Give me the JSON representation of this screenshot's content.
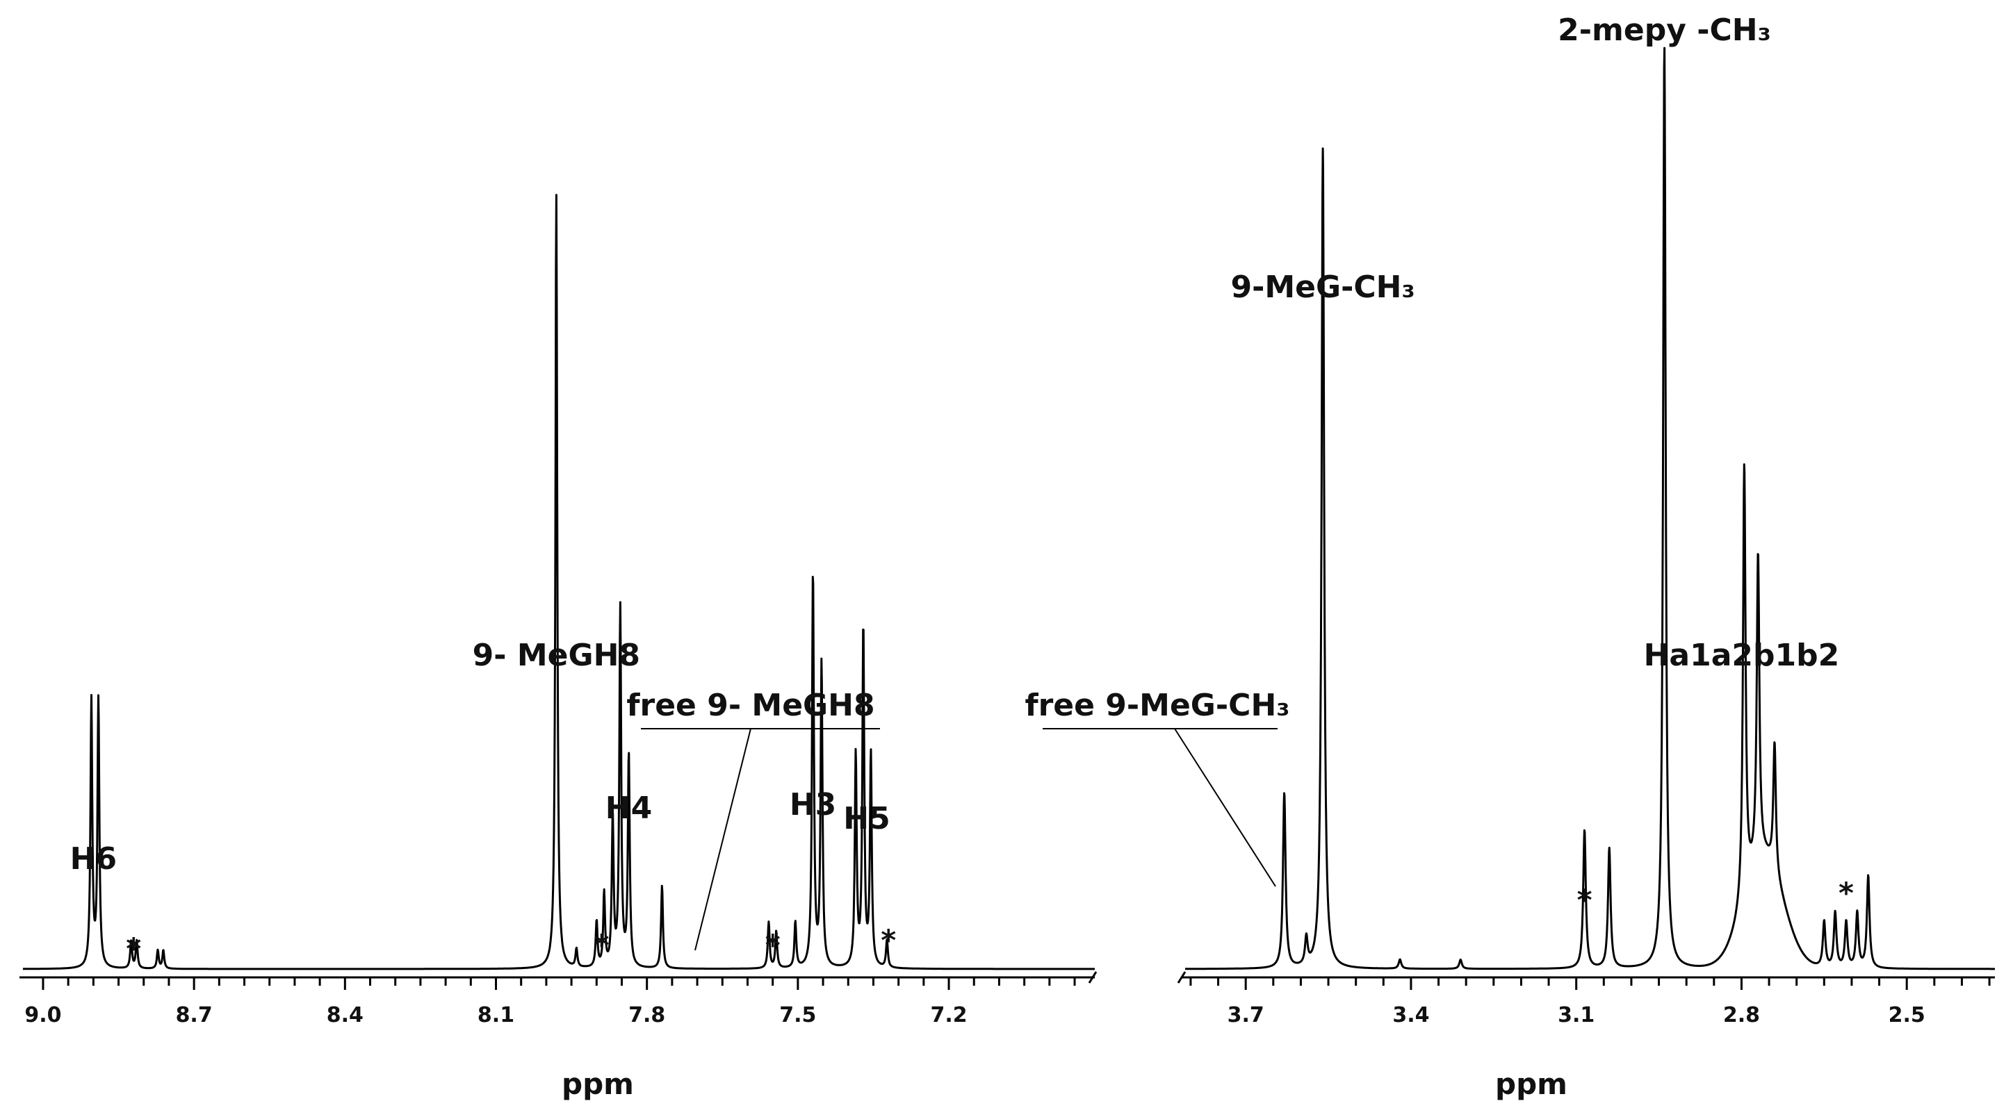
{
  "chart_data": [
    {
      "type": "line",
      "panel": "aromatic region",
      "xlabel": "ppm",
      "xlim": [
        9.04,
        6.91
      ],
      "x_reversed": true,
      "ticks": [
        "9.0",
        "8.7",
        "8.4",
        "8.1",
        "7.8",
        "7.5",
        "7.2"
      ],
      "tick_values": [
        9.0,
        8.7,
        8.4,
        8.1,
        7.8,
        7.5,
        7.2
      ],
      "ylim": [
        0,
        1.0
      ],
      "peaks": [
        {
          "ppm": 8.904,
          "height": 0.29
        },
        {
          "ppm": 8.89,
          "height": 0.29
        },
        {
          "ppm": 8.825,
          "height": 0.03
        },
        {
          "ppm": 8.814,
          "height": 0.03
        },
        {
          "ppm": 8.772,
          "height": 0.02
        },
        {
          "ppm": 8.761,
          "height": 0.02
        },
        {
          "ppm": 7.98,
          "height": 0.84
        },
        {
          "ppm": 7.94,
          "height": 0.02
        },
        {
          "ppm": 7.9,
          "height": 0.05
        },
        {
          "ppm": 7.885,
          "height": 0.08
        },
        {
          "ppm": 7.868,
          "height": 0.16
        },
        {
          "ppm": 7.853,
          "height": 0.39
        },
        {
          "ppm": 7.836,
          "height": 0.23
        },
        {
          "ppm": 7.77,
          "height": 0.09
        },
        {
          "ppm": 7.558,
          "height": 0.05
        },
        {
          "ppm": 7.543,
          "height": 0.04
        },
        {
          "ppm": 7.505,
          "height": 0.05
        },
        {
          "ppm": 7.47,
          "height": 0.43
        },
        {
          "ppm": 7.453,
          "height": 0.33
        },
        {
          "ppm": 7.385,
          "height": 0.23
        },
        {
          "ppm": 7.37,
          "height": 0.37
        },
        {
          "ppm": 7.355,
          "height": 0.23
        },
        {
          "ppm": 7.323,
          "height": 0.03
        }
      ],
      "labels": [
        {
          "text": "H6",
          "ppm": 8.9
        },
        {
          "text": "*",
          "ppm": 8.82
        },
        {
          "text": "9- MeGH8",
          "ppm": 7.98
        },
        {
          "text": "free 9- MeGH8",
          "ppm": 7.77,
          "underlined": true
        },
        {
          "text": "*",
          "ppm": 7.89
        },
        {
          "text": "H4",
          "ppm": 7.85
        },
        {
          "text": "*",
          "ppm": 7.55
        },
        {
          "text": "H3",
          "ppm": 7.47
        },
        {
          "text": "H5",
          "ppm": 7.37
        },
        {
          "text": "*",
          "ppm": 7.32
        }
      ]
    },
    {
      "type": "line",
      "panel": "aliphatic region",
      "xlabel": "ppm",
      "xlim": [
        3.81,
        2.34
      ],
      "x_reversed": true,
      "ticks": [
        "3.7",
        "3.4",
        "3.1",
        "2.8",
        "2.5"
      ],
      "tick_values": [
        3.7,
        3.4,
        3.1,
        2.8,
        2.5
      ],
      "ylim": [
        0,
        1.0
      ],
      "peaks": [
        {
          "ppm": 3.63,
          "height": 0.19
        },
        {
          "ppm": 3.59,
          "height": 0.03
        },
        {
          "ppm": 3.56,
          "height": 0.89
        },
        {
          "ppm": 3.42,
          "height": 0.01
        },
        {
          "ppm": 3.31,
          "height": 0.01
        },
        {
          "ppm": 3.085,
          "height": 0.15
        },
        {
          "ppm": 3.04,
          "height": 0.13
        },
        {
          "ppm": 2.94,
          "height": 1.0
        },
        {
          "ppm": 2.795,
          "height": 0.47
        },
        {
          "ppm": 2.77,
          "height": 0.33
        },
        {
          "ppm": 2.74,
          "height": 0.14
        },
        {
          "ppm": 2.65,
          "height": 0.05
        },
        {
          "ppm": 2.63,
          "height": 0.06
        },
        {
          "ppm": 2.61,
          "height": 0.05
        },
        {
          "ppm": 2.59,
          "height": 0.06
        },
        {
          "ppm": 2.57,
          "height": 0.1
        }
      ],
      "labels": [
        {
          "text": "free 9-MeG-CH₃",
          "ppm": 3.63,
          "underlined": true
        },
        {
          "text": "9-MeG-CH₃",
          "ppm": 3.56
        },
        {
          "text": "*",
          "ppm": 3.085
        },
        {
          "text": "2-mepy -CH₃",
          "ppm": 2.94
        },
        {
          "text": "Ha1a2b1b2",
          "ppm": 2.8
        },
        {
          "text": "*",
          "ppm": 2.61
        }
      ]
    }
  ]
}
